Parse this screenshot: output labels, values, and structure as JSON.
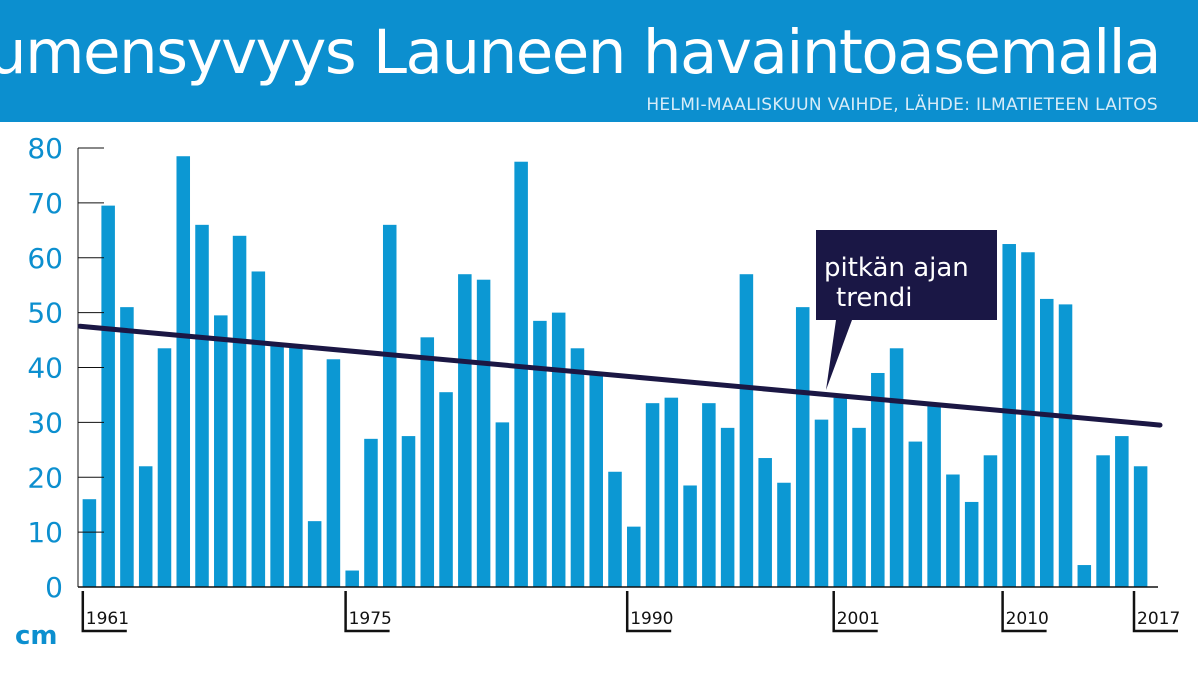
{
  "header": {
    "title": "Lumensyvyys Launeen havaintoasemalla",
    "subtitle": "HELMI-MAALISKUUN VAIHDE, LÄHDE: ILMATIETEEN LAITOS"
  },
  "colors": {
    "header_bg": "#0c8fcf",
    "bar": "#0c98d3",
    "trend": "#1b1744",
    "axis_text": "#0c8fcf",
    "callout_bg": "#1a1745"
  },
  "chart_data": {
    "type": "bar",
    "title": "Lumensyvyys Launeen havaintoasemalla",
    "subtitle": "HELMI-MAALISKUUN VAIHDE, LÄHDE: ILMATIETEEN LAITOS",
    "ylabel": "cm",
    "xlabel": "",
    "ylim": [
      0,
      80
    ],
    "yticks": [
      0,
      10,
      20,
      30,
      40,
      50,
      60,
      70,
      80
    ],
    "x_start": 1961,
    "x_end": 2017,
    "x_tick_labels": [
      "1961",
      "1975",
      "1990",
      "2001",
      "2010",
      "2017"
    ],
    "grid": false,
    "series": [
      {
        "values": [
          16,
          69.5,
          51,
          22,
          43.5,
          78.5,
          66,
          49.5,
          64,
          57.5,
          44,
          44,
          12,
          41.5,
          3,
          27,
          66,
          27.5,
          45.5,
          35.5,
          57,
          56,
          30,
          77.5,
          48.5,
          50,
          43.5,
          39,
          21,
          11,
          33.5,
          34.5,
          18.5,
          33.5,
          29,
          57,
          23.5,
          19,
          51,
          30.5,
          34.5,
          29,
          39,
          43.5,
          26.5,
          33,
          20.5,
          15.5,
          24,
          62.5,
          61,
          52.5,
          51.5,
          4,
          24,
          27.5,
          22
        ]
      }
    ],
    "trend": {
      "label": "pitkän ajan trendi",
      "start": {
        "year": 1961,
        "value": 47.5
      },
      "end": {
        "year": 2017,
        "value": 29.5
      }
    }
  }
}
